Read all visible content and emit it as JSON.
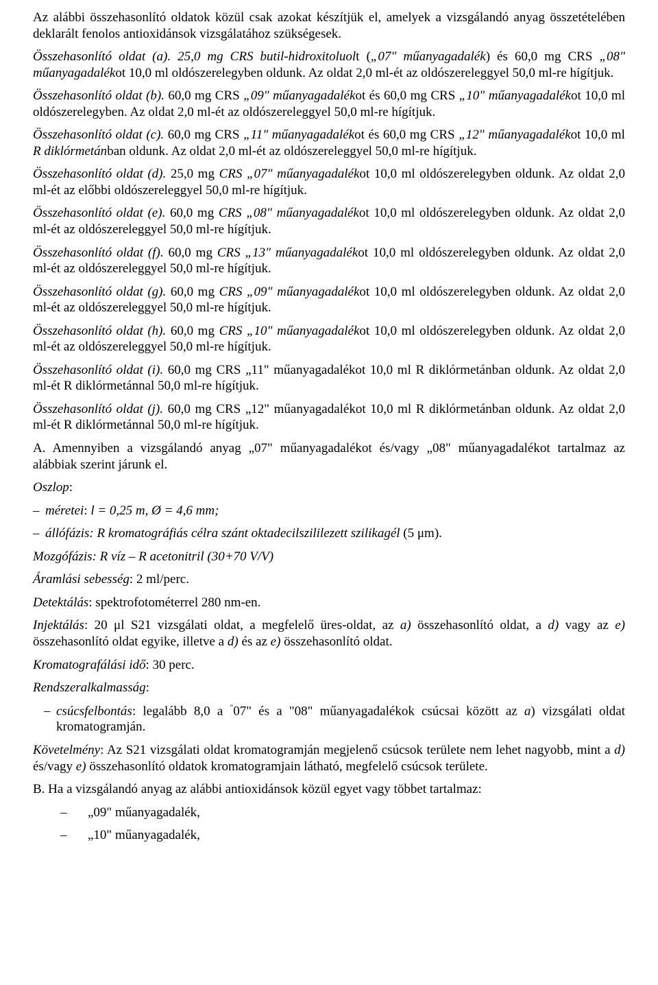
{
  "p1": {
    "text": "Az alábbi összehasonlító oldatok közül csak azokat készítjük el, amelyek a vizsgálandó anyag összetételében deklarált fenolos antioxidánsok vizsgálatához szükségesek."
  },
  "p2": {
    "lead_it": "Összehasonlító oldat (a).",
    "mid1_it": " 25,0 mg CRS butil-hidroxitoluol",
    "mid1_plain": "t (",
    "mid2_it": "„07\" műanyagadalék",
    "mid2_plain": ") és 60,0 mg CRS ",
    "mid3_it": "„08\" műanyagadalék",
    "mid3_plain": "ot 10,0 ml oldószerelegyben oldunk. Az oldat 2,0 ml-ét az oldószereleggyel 50,0 ml-re hígítjuk."
  },
  "p3": {
    "lead_it": "Összehasonlító oldat (b).",
    "mid1_plain": " 60,0 mg CRS ",
    "mid1_it": "„09\" műanyagadalék",
    "mid2_plain": "ot és 60,0 mg CRS ",
    "mid2_it": "„10\" műanyagadalék",
    "mid3_plain": "ot 10,0 ml oldószerelegyben. Az oldat 2,0 ml-ét az oldószereleggyel 50,0 ml-re hígítjuk."
  },
  "p4": {
    "lead_it": "Összehasonlító oldat (c).",
    "mid1_plain": " 60,0 mg CRS ",
    "mid1_it": "„11\" műanyagadalék",
    "mid2_plain": "ot és 60,0 mg CRS ",
    "mid2_it": "„12\" műanyagadalék",
    "mid3_plain": "ot 10,0 ml ",
    "mid3_it": "R diklórmetán",
    "mid4_plain": "ban oldunk. Az oldat 2,0 ml-ét az oldószereleggyel 50,0 ml-re hígítjuk."
  },
  "p5": {
    "lead_it": "Összehasonlító oldat (d).",
    "mid1_plain": " 25,0 mg ",
    "mid1_it": "CRS „07\" műanyagadalék",
    "mid2_plain": "ot 10,0 ml oldószerelegyben oldunk. Az oldat 2,0 ml-ét az előbbi oldószereleggyel 50,0 ml-re hígítjuk."
  },
  "p6": {
    "lead_it": "Összehasonlító oldat (e).",
    "mid1_plain": " 60,0 mg ",
    "mid1_it": "CRS „08\" műanyagadalék",
    "mid2_plain": "ot 10,0 ml oldószerelegyben  oldunk. Az oldat 2,0 ml-ét az oldószereleggyel 50,0 ml-re hígítjuk."
  },
  "p7": {
    "lead_it": "Összehasonlító oldat (f).",
    "mid1_plain": " 60,0 mg ",
    "mid1_it": "CRS „13\" műanyagadalék",
    "mid2_plain": "ot 10,0 ml oldószerelegyben oldunk. Az oldat 2,0 ml-ét az oldószereleggyel 50,0 ml-re hígítjuk."
  },
  "p8": {
    "lead_it": "Összehasonlító oldat (g).",
    "mid1_plain": " 60,0 mg ",
    "mid1_it": "CRS „09\" műanyagadalék",
    "mid2_plain": "ot 10,0 ml oldószerelegyben oldunk. Az oldat 2,0 ml-ét az oldószereleggyel 50,0 ml-re hígítjuk."
  },
  "p9": {
    "lead_it": "Összehasonlító oldat (h).",
    "mid1_plain": " 60,0 mg ",
    "mid1_it": "CRS „10\" műanyagadalék",
    "mid2_plain": "ot 10,0 ml oldószerelegyben  oldunk. Az oldat 2,0 ml-ét az oldószereleggyel 50,0 ml-re hígítjuk."
  },
  "p10": {
    "lead_it": "Összehasonlító oldat (i).",
    "rest": " 60,0 mg CRS „11\" műanyagadalékot 10,0 ml R diklórmetánban oldunk. Az oldat 2,0 ml-ét R diklórmetánnal 50,0 ml-re hígítjuk."
  },
  "p11": {
    "lead_it": "Összehasonlító oldat (j).",
    "rest": " 60,0 mg CRS „12\" műanyagadalékot 10,0 ml R diklórmetánban oldunk. Az oldat 2,0 ml-ét R diklórmetánnal 50,0 ml-re hígítjuk."
  },
  "p12": {
    "text": "A. Amennyiben a vizsgálandó anyag „07\" műanyagadalékot és/vagy „08\" műanyagadalékot tartalmaz az alábbiak szerint járunk el."
  },
  "oszlop": {
    "label_it": "Oszlop",
    "colon": ":"
  },
  "bul1": {
    "dash": "–",
    "pre_it": "méretei",
    "colon": ": ",
    "val_it": "l",
    "rest_it": " = 0,25 m, Ø = 4,6 mm;"
  },
  "bul2": {
    "dash": "–",
    "text_it": "állófázis: R kromatográfiás célra szánt oktadecilszililezett szilikagél",
    "tail_plain": " (5 μm)."
  },
  "mozgofazis": {
    "text_it": "Mozgófázis: R víz – R acetonitril (30+70 V/V)"
  },
  "aramlas": {
    "label_it": "Áramlási sebesség",
    "rest": ": 2 ml/perc."
  },
  "detekt": {
    "label_it": "Detektálás",
    "rest": ": spektrofotométerrel 280 nm-en."
  },
  "inj": {
    "label_it": "Injektálás",
    "seg1": ":  20 μl S21 vizsgálati oldat, a megfelelő üres-oldat, az ",
    "a_it": "a)",
    "seg2": " összehasonlító oldat, a ",
    "d_it": "d)",
    "seg3": " vagy az ",
    "e_it": "e)",
    "seg4": " összehasonlító oldat egyike, illetve a ",
    "d2_it": "d)",
    "seg5": " és az ",
    "e2_it": "e)",
    "seg6": " összehasonlító oldat."
  },
  "kromido": {
    "label_it": "Kromatografálási idő",
    "rest": ": 30 perc."
  },
  "rendszer": {
    "label_it": "Rendszeralkalmasság",
    "colon": ":"
  },
  "csucs": {
    "dash": "–",
    "lead_it": "csúcsfelbontás",
    "seg1": ": legalább 8,0 a ",
    "quote": "\"",
    "seg_a": "07\" és a \"08\" műanyagadalékok csúcsai között az ",
    "a_it": "a",
    "seg2": ") vizsgálati oldat kromatogramján."
  },
  "kov": {
    "label_it": "Követelmény",
    "seg1": ": Az S21 vizsgálati oldat kromatogramján megjelenő csúcsok területe nem lehet nagyobb, mint a ",
    "d_it": "d)",
    "seg2": " és/vagy ",
    "e_it": "e)",
    "seg3": " összehasonlító oldatok kromatogramjain látható, megfelelő csúcsok területe."
  },
  "pB": {
    "text": "B. Ha a vizsgálandó anyag az alábbi antioxidánsok közül egyet vagy többet tartalmaz:"
  },
  "lb1": {
    "dash": "–",
    "text": "„09\" műanyagadalék,"
  },
  "lb2": {
    "dash": "–",
    "text": "„10\" műanyagadalék,"
  }
}
